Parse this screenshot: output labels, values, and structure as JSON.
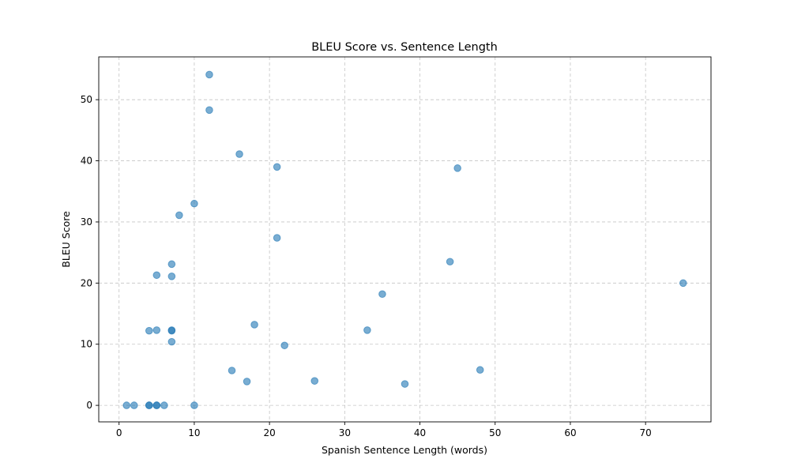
{
  "chart_data": {
    "type": "scatter",
    "title": "BLEU Score vs. Sentence Length",
    "xlabel": "Spanish Sentence Length (words)",
    "ylabel": "BLEU Score",
    "xlim": [
      -2.7,
      78.7
    ],
    "ylim": [
      -2.7,
      57.0
    ],
    "xticks": [
      0,
      10,
      20,
      30,
      40,
      50,
      60,
      70
    ],
    "yticks": [
      0,
      10,
      20,
      30,
      40,
      50
    ],
    "grid": true,
    "legend": "none",
    "marker_color": "#1f77b4",
    "marker_alpha": 0.6,
    "points": [
      {
        "x": 1,
        "y": 0
      },
      {
        "x": 2,
        "y": 0
      },
      {
        "x": 4,
        "y": 0
      },
      {
        "x": 4,
        "y": 0
      },
      {
        "x": 5,
        "y": 0
      },
      {
        "x": 5,
        "y": 0
      },
      {
        "x": 6,
        "y": 0
      },
      {
        "x": 10,
        "y": 0
      },
      {
        "x": 4,
        "y": 12.2
      },
      {
        "x": 5,
        "y": 12.3
      },
      {
        "x": 5,
        "y": 21.3
      },
      {
        "x": 7,
        "y": 12.3
      },
      {
        "x": 7,
        "y": 12.2
      },
      {
        "x": 7,
        "y": 10.4
      },
      {
        "x": 7,
        "y": 21.1
      },
      {
        "x": 7,
        "y": 23.1
      },
      {
        "x": 8,
        "y": 31.1
      },
      {
        "x": 10,
        "y": 33.0
      },
      {
        "x": 12,
        "y": 54.1
      },
      {
        "x": 12,
        "y": 48.3
      },
      {
        "x": 15,
        "y": 5.7
      },
      {
        "x": 16,
        "y": 41.1
      },
      {
        "x": 17,
        "y": 3.9
      },
      {
        "x": 18,
        "y": 13.2
      },
      {
        "x": 21,
        "y": 39.0
      },
      {
        "x": 21,
        "y": 27.4
      },
      {
        "x": 22,
        "y": 9.8
      },
      {
        "x": 26,
        "y": 4.0
      },
      {
        "x": 33,
        "y": 12.3
      },
      {
        "x": 35,
        "y": 18.2
      },
      {
        "x": 38,
        "y": 3.5
      },
      {
        "x": 44,
        "y": 23.5
      },
      {
        "x": 45,
        "y": 38.8
      },
      {
        "x": 48,
        "y": 5.8
      },
      {
        "x": 75,
        "y": 20.0
      }
    ]
  }
}
